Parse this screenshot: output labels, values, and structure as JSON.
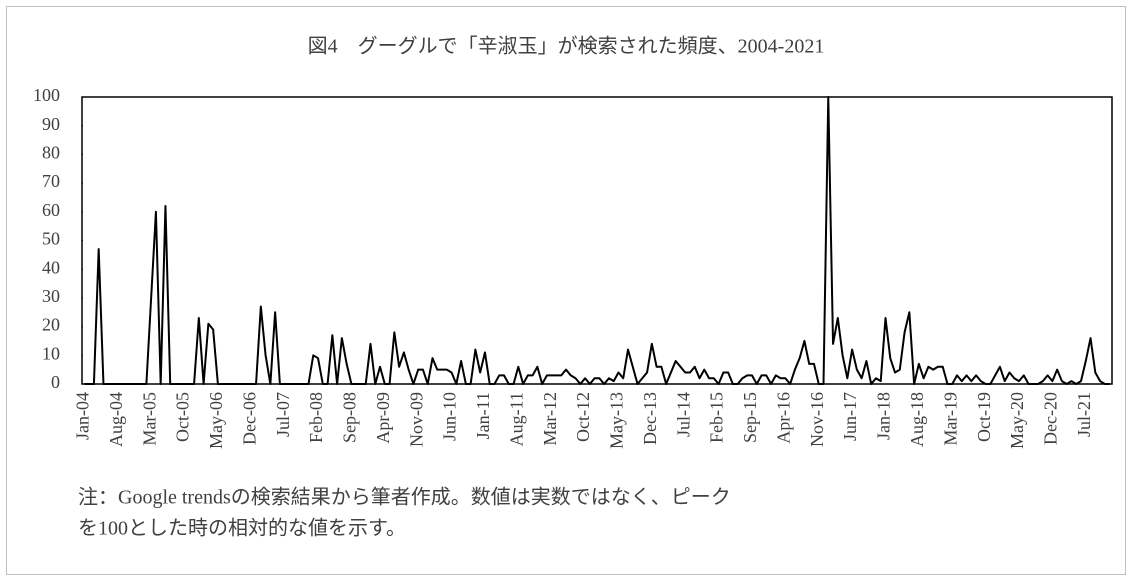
{
  "chart_data": {
    "type": "line",
    "title": "図4　グーグルで「辛淑玉」が検索された頻度、2004-2021",
    "note": [
      "注：Google trendsの検索結果から筆者作成。数値は実数ではなく、ピーク",
      "を100とした時の相対的な値を示す。"
    ],
    "categories": [
      "Jan-04",
      null,
      null,
      null,
      null,
      null,
      null,
      "Aug-04",
      null,
      null,
      null,
      null,
      null,
      null,
      "Mar-05",
      null,
      null,
      null,
      null,
      null,
      null,
      "Oct-05",
      null,
      null,
      null,
      null,
      null,
      null,
      "May-06",
      null,
      null,
      null,
      null,
      null,
      null,
      "Dec-06",
      null,
      null,
      null,
      null,
      null,
      null,
      "Jul-07",
      null,
      null,
      null,
      null,
      null,
      null,
      "Feb-08",
      null,
      null,
      null,
      null,
      null,
      null,
      "Sep-08",
      null,
      null,
      null,
      null,
      null,
      null,
      "Apr-09",
      null,
      null,
      null,
      null,
      null,
      null,
      "Nov-09",
      null,
      null,
      null,
      null,
      null,
      null,
      "Jun-10",
      null,
      null,
      null,
      null,
      null,
      null,
      "Jan-11",
      null,
      null,
      null,
      null,
      null,
      null,
      "Aug-11",
      null,
      null,
      null,
      null,
      null,
      null,
      "Mar-12",
      null,
      null,
      null,
      null,
      null,
      null,
      "Oct-12",
      null,
      null,
      null,
      null,
      null,
      null,
      "May-13",
      null,
      null,
      null,
      null,
      null,
      null,
      "Dec-13",
      null,
      null,
      null,
      null,
      null,
      null,
      "Jul-14",
      null,
      null,
      null,
      null,
      null,
      null,
      "Feb-15",
      null,
      null,
      null,
      null,
      null,
      null,
      "Sep-15",
      null,
      null,
      null,
      null,
      null,
      null,
      "Apr-16",
      null,
      null,
      null,
      null,
      null,
      null,
      "Nov-16",
      null,
      null,
      null,
      null,
      null,
      null,
      "Jun-17",
      null,
      null,
      null,
      null,
      null,
      null,
      "Jan-18",
      null,
      null,
      null,
      null,
      null,
      null,
      "Aug-18",
      null,
      null,
      null,
      null,
      null,
      null,
      "Mar-19",
      null,
      null,
      null,
      null,
      null,
      null,
      "Oct-19",
      null,
      null,
      null,
      null,
      null,
      null,
      "May-20",
      null,
      null,
      null,
      null,
      null,
      null,
      "Dec-20",
      null,
      null,
      null,
      null,
      null,
      null,
      "Jul-21",
      null,
      null,
      null,
      null,
      null
    ],
    "values": [
      0,
      0,
      0,
      47,
      0,
      0,
      0,
      0,
      0,
      0,
      0,
      0,
      0,
      0,
      30,
      60,
      0,
      62,
      0,
      0,
      0,
      0,
      0,
      0,
      23,
      0,
      21,
      19,
      0,
      0,
      0,
      0,
      0,
      0,
      0,
      0,
      0,
      27,
      10,
      0,
      25,
      0,
      0,
      0,
      0,
      0,
      0,
      0,
      10,
      9,
      0,
      0,
      17,
      0,
      16,
      7,
      0,
      0,
      0,
      0,
      14,
      0,
      6,
      0,
      0,
      18,
      6,
      11,
      5,
      0,
      5,
      5,
      0,
      9,
      5,
      5,
      5,
      4,
      0,
      8,
      0,
      0,
      12,
      4,
      11,
      0,
      0,
      3,
      3,
      0,
      0,
      6,
      0,
      3,
      3,
      6,
      0,
      3,
      3,
      3,
      3,
      5,
      3,
      2,
      0,
      2,
      0,
      2,
      2,
      0,
      2,
      1,
      4,
      2,
      12,
      6,
      0,
      2,
      4,
      14,
      6,
      6,
      0,
      4,
      8,
      6,
      4,
      4,
      6,
      2,
      5,
      2,
      2,
      0,
      4,
      4,
      0,
      0,
      2,
      3,
      3,
      0,
      3,
      3,
      0,
      3,
      2,
      2,
      0,
      5,
      9,
      15,
      7,
      7,
      0,
      0,
      100,
      14,
      23,
      10,
      2,
      12,
      5,
      2,
      8,
      0,
      2,
      1,
      23,
      9,
      4,
      5,
      18,
      25,
      0,
      7,
      2,
      6,
      5,
      6,
      6,
      0,
      0,
      3,
      1,
      3,
      1,
      3,
      1,
      0,
      0,
      3,
      6,
      1,
      4,
      2,
      1,
      3,
      0,
      0,
      0,
      1,
      3,
      1,
      5,
      1,
      0,
      1,
      0,
      1,
      8,
      16,
      4,
      1,
      0,
      0
    ],
    "color": "#000000",
    "ylim": [
      0,
      100
    ],
    "yticks": [
      0,
      10,
      20,
      30,
      40,
      50,
      60,
      70,
      80,
      90,
      100
    ],
    "grid": false
  }
}
